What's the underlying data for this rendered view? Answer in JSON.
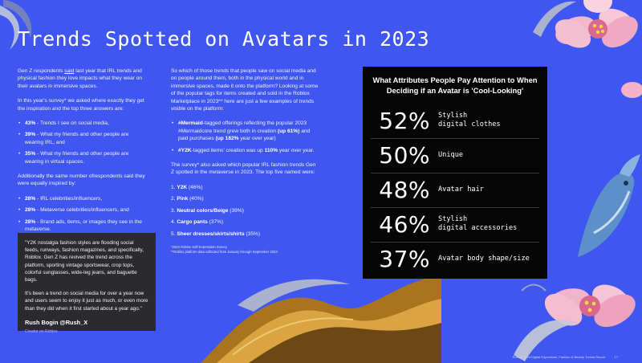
{
  "title": "Trends Spotted on Avatars in 2023",
  "col1": {
    "intro_pre": "Gen Z respondents ",
    "intro_underlined": "said",
    "intro_post": " last year that IRL trends and physical fashion they love impacts what they wear on their avatars in immersive spaces.",
    "survey_text": "In this year's survey* we asked where exactly they get the inspiration and the top three answers are:",
    "top_answers": [
      {
        "pct": "43%",
        "text": " - Trends I see on social media,"
      },
      {
        "pct": "39%",
        "text": " - What my friends and other people are wearing IRL, and"
      },
      {
        "pct": "35%",
        "text": " - What my friends and other people are wearing in virtual spaces."
      }
    ],
    "additional_text": "Additionally the same number ofrespondents said they were equally inspired by:",
    "inspired_by": [
      {
        "pct": "28%",
        "text": " - IRL celebrities/influencers,"
      },
      {
        "pct": "28%",
        "text": " - Metaverse celebrities/influencers, and"
      },
      {
        "pct": "28%",
        "text": " - Brand ads, items, or images they see in the metaverse."
      }
    ]
  },
  "col2": {
    "intro": "So which of those trends that people saw on social media and on people around them, both in the physical world and in immersive spaces, made it onto the platform? Looking at some of the popular tags for items created and sold in the Roblox Marketplace in 2023** here are just a few examples of trends visible on the platform:",
    "tag_1_bold": "#Mermaid",
    "tag_1_text": "-tagged offerings reflecting the popular 2023 #Mermaidcore trend grew both in creation ",
    "tag_1_stat1": "(up 61%)",
    "tag_1_mid": " and paid purchases ",
    "tag_1_stat2": "(up 182%",
    "tag_1_end": " year over year)",
    "tag_2_bold": "#Y2K",
    "tag_2_text": "-tagged items' creation was up ",
    "tag_2_stat": "110%",
    "tag_2_end": " year over year.",
    "survey_also": "The survey* also asked which popular IRL fashion trends Gen Z spotted in the metaverse in 2023. The top five named were:",
    "top_five": [
      {
        "num": "1.",
        "name": "Y2K",
        "pct": " (46%)"
      },
      {
        "num": "2.",
        "name": "Pink",
        "pct": " (40%)"
      },
      {
        "num": "3.",
        "name": "Neutral colors/Beige",
        "pct": " (39%)"
      },
      {
        "num": "4.",
        "name": "Cargo pants",
        "pct": " (37%)"
      },
      {
        "num": "5.",
        "name": "Sheer dresses/skirts/shirts",
        "pct": " (35%)"
      }
    ],
    "footnote_1": "*2023 Roblox Self-Expression Survey",
    "footnote_2": "**Roblox platform data collected from January through September 2023"
  },
  "quote": {
    "paragraph_1": "\"Y2K nostalgia fashion styles are flooding social feeds, runways, fashion magazines, and specifically, Roblox. Gen Z has revived the trend across the platform, sporting vintage sportswear, crop tops, colorful sunglasses, wide-leg jeans, and baguette bags.",
    "paragraph_2": "It's been a trend on social media for over a year now and users seem to enjoy it just as much, or even more than they did when it first started about a year ago.\"",
    "author": "Rush Bogin @Rush_X",
    "role": "Creator on Roblox"
  },
  "panel": {
    "title": "What Attributes People Pay Attention to When Deciding if an Avatar is 'Cool-Looking'",
    "stats": [
      {
        "pct": "52%",
        "label": "Stylish\ndigital clothes"
      },
      {
        "pct": "50%",
        "label": "Unique"
      },
      {
        "pct": "48%",
        "label": "Avatar hair"
      },
      {
        "pct": "46%",
        "label": "Stylish\ndigital accessories"
      },
      {
        "pct": "37%",
        "label": "Avatar body shape/size"
      }
    ]
  },
  "footer": {
    "text": "Roblox 2024 Digital Expression, Fashion & Beauty Trends Report",
    "page": "17"
  },
  "colors": {
    "background": "#3f57f0",
    "panel": "#050505",
    "quote_box": "#2b2b2f"
  }
}
